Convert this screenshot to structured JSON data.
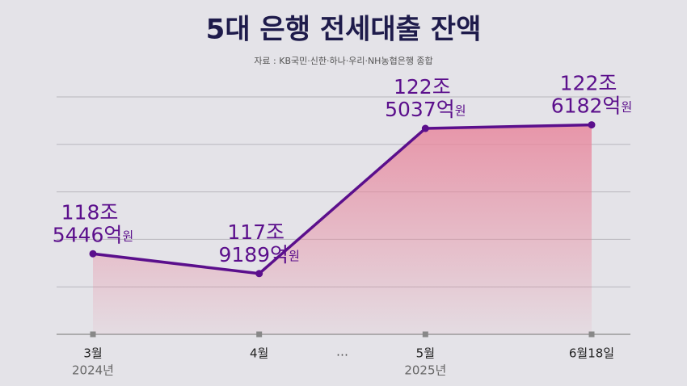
{
  "chart_data": {
    "type": "area",
    "title": "5대 은행 전세대출 잔액",
    "subtitle": "자료 : KB국민·신한·하나·우리·NH농협은행 종합",
    "categories": [
      "3월",
      "4월",
      "5월",
      "6월18일"
    ],
    "category_sublabels": [
      "2024년",
      null,
      "2025년",
      null
    ],
    "gap_label": "…",
    "values": [
      1185446,
      1179189,
      1225037,
      1226182
    ],
    "value_labels": [
      "118조 5446억원",
      "117조 9189억원",
      "122조 5037억원",
      "122조 6182억원"
    ],
    "color": "#5b0f8c",
    "fill_color": "#e8889e",
    "ylim": [
      1160000,
      1235000
    ],
    "yticks": [
      1160000,
      1175000,
      1190000,
      1205000,
      1220000,
      1235000
    ],
    "grid": true
  }
}
